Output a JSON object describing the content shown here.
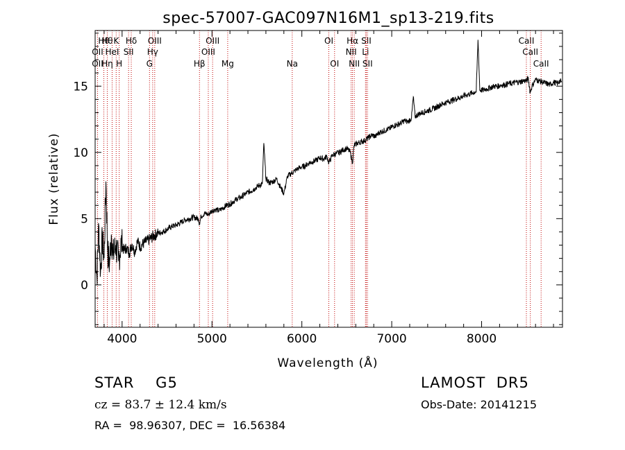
{
  "chart_data": {
    "type": "line",
    "title": "spec-57007-GAC097N16M1_sp13-219.fits",
    "xlabel": "Wavelength (Å)",
    "ylabel": "Flux (relative)",
    "xlim": [
      3700,
      8900
    ],
    "ylim": [
      -3.2,
      19.2
    ],
    "x_ticks": [
      4000,
      5000,
      6000,
      7000,
      8000
    ],
    "y_ticks": [
      0,
      5,
      10,
      15
    ],
    "grid": false,
    "series": [
      {
        "x": [
          3700,
          3720,
          3740,
          3760,
          3780,
          3800,
          3820,
          3840,
          3860,
          3880,
          3900,
          3930,
          3960,
          3990,
          4020,
          4050,
          4080,
          4110,
          4140,
          4170,
          4200,
          4250,
          4300,
          4350,
          4400,
          4450,
          4500,
          4550,
          4600,
          4650,
          4700,
          4750,
          4800,
          4850,
          4861,
          4880,
          4920,
          4960,
          5000,
          5040,
          5080,
          5120,
          5160,
          5200,
          5240,
          5280,
          5320,
          5360,
          5400,
          5440,
          5480,
          5520,
          5560,
          5577,
          5600,
          5640,
          5680,
          5720,
          5760,
          5800,
          5840,
          5880,
          5920,
          5960,
          6000,
          6040,
          6080,
          6120,
          6160,
          6200,
          6240,
          6280,
          6300,
          6340,
          6380,
          6420,
          6460,
          6500,
          6540,
          6563,
          6580,
          6620,
          6660,
          6700,
          6740,
          6780,
          6820,
          6860,
          6900,
          6940,
          6980,
          7020,
          7060,
          7100,
          7140,
          7180,
          7220,
          7240,
          7260,
          7300,
          7340,
          7380,
          7420,
          7460,
          7500,
          7540,
          7580,
          7620,
          7660,
          7700,
          7740,
          7780,
          7820,
          7860,
          7900,
          7940,
          7960,
          7980,
          8020,
          8060,
          8100,
          8140,
          8180,
          8220,
          8260,
          8300,
          8340,
          8380,
          8420,
          8460,
          8500,
          8520,
          8540,
          8560,
          8600,
          8640,
          8680,
          8720,
          8760,
          8800,
          8840,
          8870,
          8890
        ],
        "y": [
          3.0,
          0.5,
          4.5,
          1.0,
          3.5,
          2.0,
          7.8,
          2.5,
          1.5,
          3.8,
          2.2,
          3.0,
          1.8,
          3.2,
          2.6,
          2.8,
          2.4,
          3.1,
          2.5,
          3.3,
          2.9,
          3.2,
          3.4,
          3.7,
          3.9,
          4.0,
          4.2,
          4.4,
          4.5,
          4.7,
          4.9,
          5.0,
          5.1,
          5.0,
          4.6,
          5.2,
          5.4,
          5.3,
          5.6,
          5.7,
          5.6,
          5.8,
          6.0,
          6.1,
          6.3,
          6.5,
          6.6,
          6.8,
          7.0,
          7.1,
          7.3,
          7.5,
          7.6,
          10.7,
          8.0,
          7.7,
          7.8,
          8.0,
          7.4,
          6.9,
          8.2,
          8.4,
          8.6,
          8.8,
          8.9,
          9.0,
          9.2,
          9.3,
          9.4,
          9.6,
          9.5,
          9.7,
          9.2,
          9.8,
          9.9,
          10.0,
          10.2,
          10.3,
          10.0,
          9.2,
          10.5,
          10.7,
          10.8,
          10.9,
          11.1,
          11.3,
          11.2,
          11.5,
          11.6,
          11.7,
          11.8,
          12.0,
          12.1,
          12.2,
          12.4,
          12.3,
          12.6,
          14.2,
          12.7,
          12.9,
          13.0,
          13.1,
          13.2,
          13.3,
          13.4,
          13.6,
          13.7,
          13.8,
          13.9,
          14.0,
          14.1,
          14.2,
          14.3,
          14.4,
          14.5,
          14.6,
          18.5,
          14.7,
          14.7,
          14.8,
          14.9,
          15.0,
          15.0,
          15.1,
          15.1,
          15.2,
          15.2,
          15.3,
          15.3,
          15.4,
          15.4,
          15.6,
          14.5,
          15.0,
          15.5,
          15.4,
          15.3,
          15.2,
          15.1,
          15.3,
          15.2,
          15.4,
          15.3
        ]
      }
    ],
    "lines_top": [
      {
        "w": 3797,
        "label": "Hθ"
      },
      {
        "w": 3835,
        "label": "Hθ"
      },
      {
        "w": 3934,
        "label": "K"
      },
      {
        "w": 4102,
        "label": "Hδ"
      },
      {
        "w": 4363,
        "label": "OIII"
      },
      {
        "w": 5007,
        "label": "OIII"
      },
      {
        "w": 6300,
        "label": "OI"
      },
      {
        "w": 6563,
        "label": "Hα"
      },
      {
        "w": 6717,
        "label": "SII"
      },
      {
        "w": 8498,
        "label": "CaII"
      }
    ],
    "lines_mid": [
      {
        "w": 3727,
        "label": "OII"
      },
      {
        "w": 3889,
        "label": "HeI"
      },
      {
        "w": 4072,
        "label": "SII"
      },
      {
        "w": 4340,
        "label": "Hγ"
      },
      {
        "w": 4959,
        "label": "OIII"
      },
      {
        "w": 6548,
        "label": "NII"
      },
      {
        "w": 6708,
        "label": "Li"
      },
      {
        "w": 8542,
        "label": "CaII"
      }
    ],
    "lines_bot": [
      {
        "w": 3727,
        "label": "OII"
      },
      {
        "w": 3835,
        "label": "Hη"
      },
      {
        "w": 3968,
        "label": "H"
      },
      {
        "w": 4305,
        "label": "G"
      },
      {
        "w": 4861,
        "label": "Hβ"
      },
      {
        "w": 5175,
        "label": "Mg"
      },
      {
        "w": 5893,
        "label": "Na"
      },
      {
        "w": 6364,
        "label": "OI"
      },
      {
        "w": 6583,
        "label": "NII"
      },
      {
        "w": 6731,
        "label": "SII"
      },
      {
        "w": 8662,
        "label": "CaII"
      }
    ]
  },
  "info": {
    "object": "STAR    G5",
    "survey": "LAMOST  DR5",
    "cz": "cz = 83.7 ± 12.4 km/s",
    "obs_date": "Obs-Date: 20141215",
    "radec": "RA =  98.96307, DEC =  16.56384"
  }
}
